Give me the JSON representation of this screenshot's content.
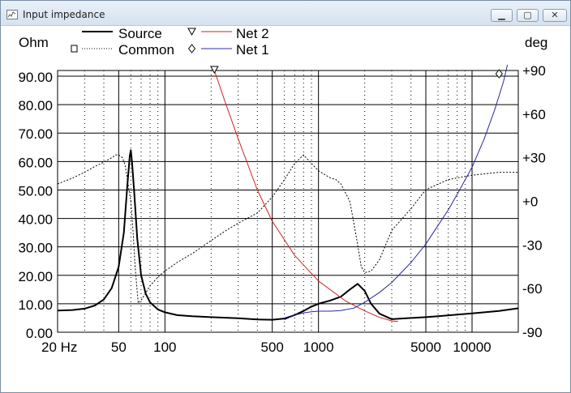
{
  "window": {
    "title": "Input impedance",
    "icon": "chart-window-icon",
    "buttons": {
      "minimize": "minimize-icon",
      "maximize": "maximize-icon",
      "close": "close-icon"
    }
  },
  "chart_data": {
    "type": "line",
    "ylabel_left": "Ohm",
    "ylabel_right": "deg",
    "x_scale": "log",
    "xlim": [
      20,
      20000
    ],
    "ylim_left": [
      0,
      92
    ],
    "ylim_right": [
      -90,
      90
    ],
    "grid": true,
    "legend": "top",
    "x_ticks": [
      "20 Hz",
      "50",
      "100",
      "500",
      "1000",
      "5000",
      "10000"
    ],
    "x_tick_values": [
      20,
      50,
      100,
      500,
      1000,
      5000,
      10000
    ],
    "y_ticks_left": [
      "90.00",
      "80.00",
      "70.00",
      "60.00",
      "50.00",
      "40.00",
      "30.00",
      "20.00",
      "10.00",
      "0.00"
    ],
    "y_tick_values_left": [
      90,
      80,
      70,
      60,
      50,
      40,
      30,
      20,
      10,
      0
    ],
    "y_ticks_right": [
      "+90",
      "+60",
      "+30",
      "+0",
      "-30",
      "-60",
      "-90"
    ],
    "y_tick_values_right": [
      90,
      60,
      30,
      0,
      -30,
      -60,
      -90
    ],
    "series": [
      {
        "name": "Source",
        "color": "#000000",
        "style": "solid-thick",
        "axis": "left",
        "points": [
          [
            20,
            7.6
          ],
          [
            25,
            7.8
          ],
          [
            30,
            8.3
          ],
          [
            35,
            9.4
          ],
          [
            40,
            11.5
          ],
          [
            45,
            15.5
          ],
          [
            50,
            23
          ],
          [
            54,
            35
          ],
          [
            57,
            52
          ],
          [
            59,
            62
          ],
          [
            60,
            64
          ],
          [
            61,
            60
          ],
          [
            63,
            50
          ],
          [
            66,
            33
          ],
          [
            70,
            20
          ],
          [
            75,
            13.5
          ],
          [
            80,
            10.5
          ],
          [
            90,
            8
          ],
          [
            100,
            7
          ],
          [
            120,
            6
          ],
          [
            150,
            5.6
          ],
          [
            200,
            5.3
          ],
          [
            300,
            4.9
          ],
          [
            400,
            4.5
          ],
          [
            500,
            4.4
          ],
          [
            600,
            4.8
          ],
          [
            700,
            6
          ],
          [
            800,
            7.5
          ],
          [
            900,
            9
          ],
          [
            1000,
            10
          ],
          [
            1200,
            11.2
          ],
          [
            1400,
            12.5
          ],
          [
            1600,
            15
          ],
          [
            1800,
            17
          ],
          [
            2000,
            14.5
          ],
          [
            2200,
            10
          ],
          [
            2500,
            6.5
          ],
          [
            3000,
            4.6
          ],
          [
            4000,
            5
          ],
          [
            5000,
            5.3
          ],
          [
            6000,
            5.6
          ],
          [
            8000,
            6.2
          ],
          [
            10000,
            6.6
          ],
          [
            15000,
            7.5
          ],
          [
            20000,
            8.4
          ]
        ]
      },
      {
        "name": "Common",
        "color": "#000000",
        "style": "dotted",
        "axis": "right",
        "points": [
          [
            20,
            12
          ],
          [
            25,
            16
          ],
          [
            30,
            20
          ],
          [
            35,
            24
          ],
          [
            40,
            27
          ],
          [
            45,
            30
          ],
          [
            48,
            32
          ],
          [
            50,
            32
          ],
          [
            53,
            30
          ],
          [
            55,
            25
          ],
          [
            58,
            10
          ],
          [
            60,
            0
          ],
          [
            62,
            -20
          ],
          [
            64,
            -45
          ],
          [
            67,
            -70
          ],
          [
            70,
            -68
          ],
          [
            75,
            -63
          ],
          [
            80,
            -58
          ],
          [
            90,
            -52
          ],
          [
            100,
            -48
          ],
          [
            120,
            -42
          ],
          [
            150,
            -36
          ],
          [
            200,
            -27
          ],
          [
            250,
            -20
          ],
          [
            300,
            -15
          ],
          [
            400,
            -8
          ],
          [
            500,
            3
          ],
          [
            600,
            15
          ],
          [
            700,
            26
          ],
          [
            800,
            32
          ],
          [
            900,
            26
          ],
          [
            1000,
            21
          ],
          [
            1200,
            16
          ],
          [
            1300,
            15
          ],
          [
            1400,
            12
          ],
          [
            1600,
            0
          ],
          [
            1700,
            -15
          ],
          [
            1800,
            -30
          ],
          [
            1900,
            -45
          ],
          [
            2000,
            -49
          ],
          [
            2200,
            -48
          ],
          [
            2500,
            -40
          ],
          [
            3000,
            -20
          ],
          [
            4000,
            -5
          ],
          [
            5000,
            8
          ],
          [
            7000,
            15
          ],
          [
            10000,
            18
          ],
          [
            15000,
            20
          ],
          [
            20000,
            20
          ]
        ]
      },
      {
        "name": "Net 2",
        "color": "#d02020",
        "style": "solid",
        "axis": "left",
        "points": [
          [
            210,
            92
          ],
          [
            250,
            80
          ],
          [
            300,
            68
          ],
          [
            400,
            50
          ],
          [
            500,
            39
          ],
          [
            700,
            27
          ],
          [
            1000,
            18
          ],
          [
            1500,
            11
          ],
          [
            2000,
            7.5
          ],
          [
            2500,
            5.2
          ],
          [
            3000,
            4.0
          ],
          [
            3300,
            3.8
          ]
        ]
      },
      {
        "name": "Net 1",
        "color": "#2828a0",
        "style": "solid",
        "axis": "left",
        "points": [
          [
            600,
            4.4
          ],
          [
            700,
            6
          ],
          [
            800,
            6.8
          ],
          [
            900,
            7.2
          ],
          [
            1000,
            7.4
          ],
          [
            1200,
            7.4
          ],
          [
            1400,
            7.6
          ],
          [
            1700,
            8.5
          ],
          [
            2000,
            10.5
          ],
          [
            2500,
            14
          ],
          [
            3000,
            17.5
          ],
          [
            4000,
            24.5
          ],
          [
            5000,
            31
          ],
          [
            6000,
            37.5
          ],
          [
            7000,
            43
          ],
          [
            8000,
            48.5
          ],
          [
            10000,
            58
          ],
          [
            12000,
            68
          ],
          [
            14000,
            78
          ],
          [
            16000,
            88
          ],
          [
            17000,
            94
          ]
        ]
      }
    ],
    "markers": [
      {
        "series": "Net 2",
        "shape": "triangle-down",
        "x": 210
      },
      {
        "series": "Net 1",
        "shape": "diamond",
        "x": 15000
      }
    ]
  }
}
